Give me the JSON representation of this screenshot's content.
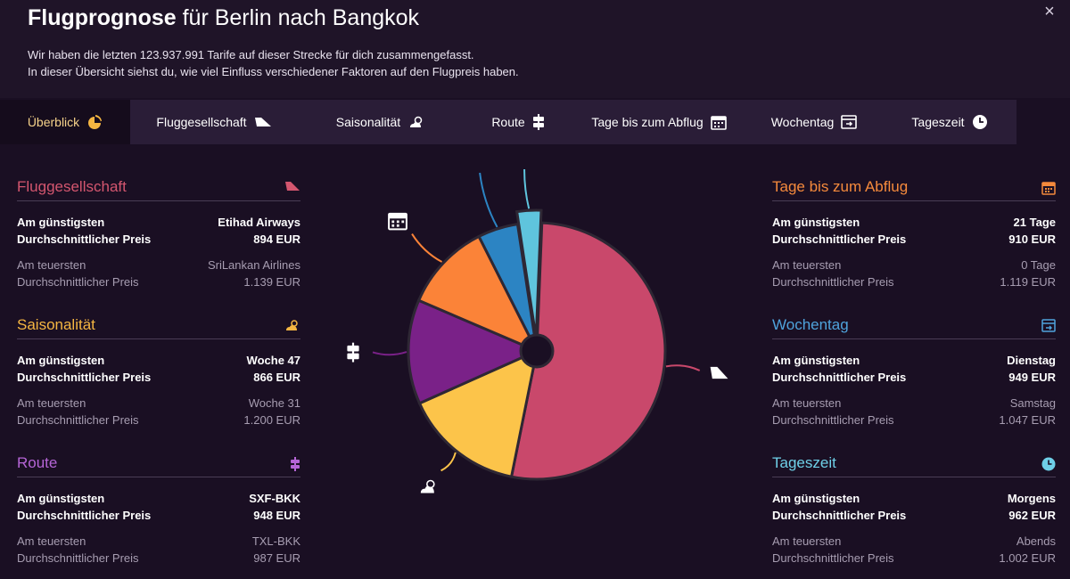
{
  "header": {
    "title_bold": "Flugprognose",
    "title_rest": " für Berlin nach Bangkok",
    "line1": "Wir haben die letzten 123.937.991 Tarife auf dieser Strecke für dich zusammengefasst.",
    "line2": "In dieser Übersicht siehst du, wie viel Einfluss verschiedener Faktoren auf den Flugpreis haben.",
    "close_label": "×"
  },
  "tabs": [
    {
      "label": "Überblick",
      "icon": "pie-icon",
      "active": true
    },
    {
      "label": "Fluggesellschaft",
      "icon": "plane-icon"
    },
    {
      "label": "Saisonalität",
      "icon": "weather-icon"
    },
    {
      "label": "Route",
      "icon": "route-icon"
    },
    {
      "label": "Tage bis zum Abflug",
      "icon": "calendar-icon"
    },
    {
      "label": "Wochentag",
      "icon": "week-icon"
    },
    {
      "label": "Tageszeit",
      "icon": "clock-icon"
    }
  ],
  "labels": {
    "cheapest": "Am günstigsten",
    "avg": "Durchschnittlicher Preis",
    "expensive": "Am teuersten"
  },
  "panels": {
    "airline": {
      "title": "Fluggesellschaft",
      "color": "#d4566f",
      "best": "Etihad Airways",
      "best_price": "894 EUR",
      "worst": "SriLankan Airlines",
      "worst_price": "1.139 EUR"
    },
    "season": {
      "title": "Saisonalität",
      "color": "#f5b642",
      "best": "Woche 47",
      "best_price": "866 EUR",
      "worst": "Woche 31",
      "worst_price": "1.200 EUR"
    },
    "route": {
      "title": "Route",
      "color": "#b565d6",
      "best": "SXF-BKK",
      "best_price": "948 EUR",
      "worst": "TXL-BKK",
      "worst_price": "987 EUR"
    },
    "days": {
      "title": "Tage bis zum Abflug",
      "color": "#f58a3c",
      "best": "21 Tage",
      "best_price": "910 EUR",
      "worst": "0 Tage",
      "worst_price": "1.119 EUR"
    },
    "weekday": {
      "title": "Wochentag",
      "color": "#4fa3dc",
      "best": "Dienstag",
      "best_price": "949 EUR",
      "worst": "Samstag",
      "worst_price": "1.047 EUR"
    },
    "daytime": {
      "title": "Tageszeit",
      "color": "#6fd0e8",
      "best": "Morgens",
      "best_price": "962 EUR",
      "worst": "Abends",
      "worst_price": "1.002 EUR"
    }
  },
  "chart_data": {
    "type": "pie",
    "categories": [
      "Fluggesellschaft",
      "Saisonalität",
      "Route",
      "Tage bis zum Abflug",
      "Wochentag",
      "Tageszeit"
    ],
    "values": [
      52,
      15,
      13,
      11,
      5,
      3
    ],
    "colors": [
      "#c9486b",
      "#fcc44a",
      "#7a2188",
      "#fb8338",
      "#2c84c3",
      "#5fc4dd"
    ],
    "icons": [
      "plane-icon",
      "weather-icon",
      "route-icon",
      "calendar-icon",
      "week-icon",
      "clock-icon"
    ]
  }
}
